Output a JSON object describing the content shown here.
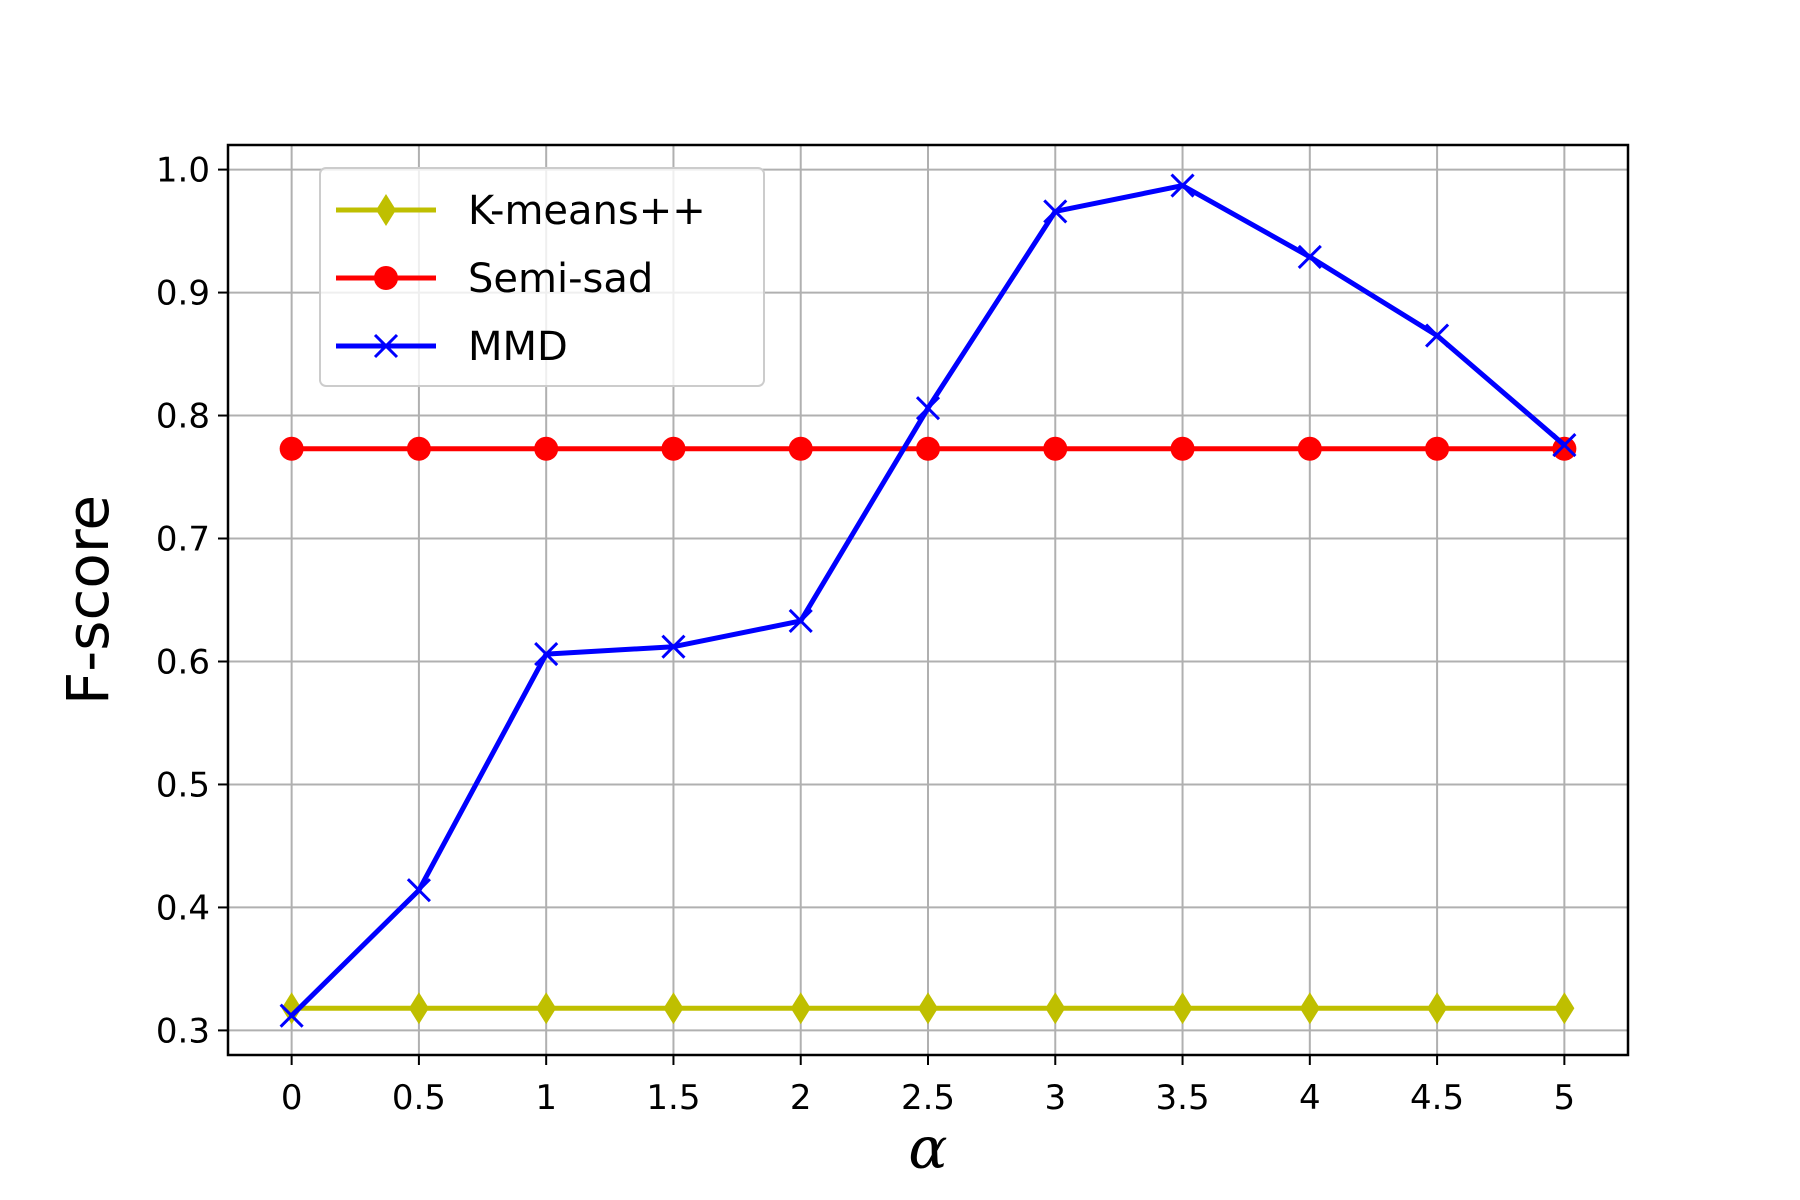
{
  "chart_data": {
    "type": "line",
    "xlabel": "α",
    "ylabel": "F-score",
    "x": [
      0,
      0.5,
      1,
      1.5,
      2,
      2.5,
      3,
      3.5,
      4,
      4.5,
      5
    ],
    "x_tick_labels": [
      "0",
      "0.5",
      "1",
      "1.5",
      "2",
      "2.5",
      "3",
      "3.5",
      "4",
      "4.5",
      "5"
    ],
    "y_ticks": [
      0.3,
      0.4,
      0.5,
      0.6,
      0.7,
      0.8,
      0.9,
      1.0
    ],
    "y_tick_labels": [
      "0.3",
      "0.4",
      "0.5",
      "0.6",
      "0.7",
      "0.8",
      "0.9",
      "1.0"
    ],
    "xlim": [
      -0.25,
      5.25
    ],
    "ylim": [
      0.28,
      1.02
    ],
    "grid": true,
    "legend_position": "top-left",
    "series": [
      {
        "name": "K-means++",
        "color": "#bfbf00",
        "marker": "diamond",
        "values": [
          0.318,
          0.318,
          0.318,
          0.318,
          0.318,
          0.318,
          0.318,
          0.318,
          0.318,
          0.318,
          0.318
        ]
      },
      {
        "name": "Semi-sad",
        "color": "#ff0000",
        "marker": "circle",
        "values": [
          0.773,
          0.773,
          0.773,
          0.773,
          0.773,
          0.773,
          0.773,
          0.773,
          0.773,
          0.773,
          0.773
        ]
      },
      {
        "name": "MMD",
        "color": "#0000ff",
        "marker": "x",
        "values": [
          0.312,
          0.414,
          0.606,
          0.612,
          0.633,
          0.806,
          0.966,
          0.987,
          0.929,
          0.865,
          0.776
        ]
      }
    ]
  }
}
